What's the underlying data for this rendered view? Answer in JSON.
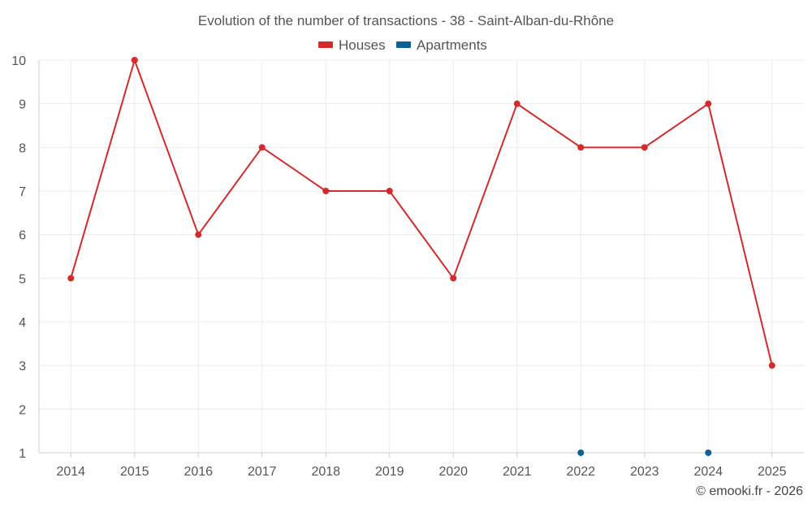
{
  "chart_data": {
    "type": "line",
    "title": "Evolution of the number of transactions - 38 - Saint-Alban-du-Rhône",
    "x": [
      "2014",
      "2015",
      "2016",
      "2017",
      "2018",
      "2019",
      "2020",
      "2021",
      "2022",
      "2023",
      "2024",
      "2025"
    ],
    "series": [
      {
        "name": "Houses",
        "color": "#d42a2a",
        "values": [
          5,
          10,
          6,
          8,
          7,
          7,
          5,
          9,
          8,
          8,
          9,
          3
        ]
      },
      {
        "name": "Apartments",
        "color": "#0e6193",
        "values": [
          null,
          null,
          null,
          null,
          null,
          null,
          null,
          null,
          1,
          null,
          1,
          null
        ]
      }
    ],
    "ylim": [
      1,
      10
    ],
    "yticks": [
      "1",
      "2",
      "3",
      "4",
      "5",
      "6",
      "7",
      "8",
      "9",
      "10"
    ],
    "grid": true,
    "legend_position": "top-center",
    "xlabel": "",
    "ylabel": ""
  },
  "credit": "© emooki.fr - 2026"
}
